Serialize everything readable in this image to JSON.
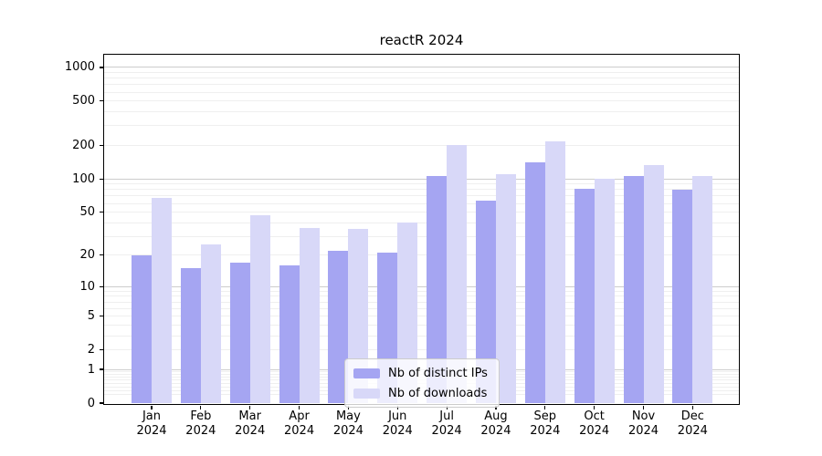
{
  "title": "reactR 2024",
  "legend": {
    "items": [
      {
        "label": "Nb of distinct IPs",
        "color": "#a5a5f2"
      },
      {
        "label": "Nb of downloads",
        "color": "#d8d8f8"
      }
    ]
  },
  "axes": {
    "y_tick_labels": [
      "1000",
      "500",
      "200",
      "100",
      "50",
      "20",
      "10",
      "5",
      "2",
      "1",
      "0"
    ],
    "x_year_label": "2024"
  },
  "chart_data": {
    "type": "bar",
    "title": "reactR 2024",
    "categories": [
      "Jan",
      "Feb",
      "Mar",
      "Apr",
      "May",
      "Jun",
      "Jul",
      "Aug",
      "Sep",
      "Oct",
      "Nov",
      "Dec"
    ],
    "year_label": "2024",
    "series": [
      {
        "name": "Nb of distinct IPs",
        "color": "#a5a5f2",
        "values": [
          20,
          15,
          17,
          16,
          22,
          21,
          107,
          63,
          142,
          82,
          107,
          80
        ]
      },
      {
        "name": "Nb of downloads",
        "color": "#d8d8f8",
        "values": [
          67,
          25,
          47,
          36,
          35,
          40,
          200,
          110,
          216,
          100,
          132,
          106
        ]
      }
    ],
    "xlabel": "",
    "ylabel": "",
    "yscale": "log1p",
    "yticks": [
      0,
      1,
      2,
      5,
      10,
      20,
      50,
      100,
      200,
      500,
      1000
    ],
    "ylim": [
      0,
      1300
    ],
    "grid": "horizontal",
    "legend_position": "lower center"
  }
}
